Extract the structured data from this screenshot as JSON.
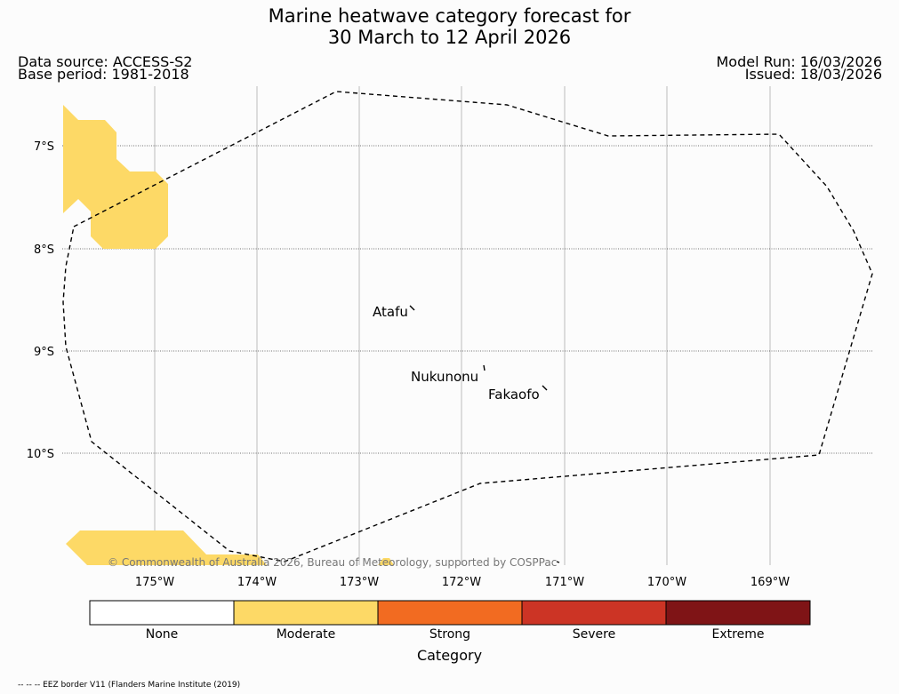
{
  "header": {
    "title_line1": "Marine heatwave category forecast for",
    "title_line2": "30 March to 12 April 2026",
    "data_source": "Data source: ACCESS-S2",
    "base_period": "Base period: 1981-2018",
    "model_run": "Model Run: 16/03/2026",
    "issued": "Issued: 18/03/2026"
  },
  "map": {
    "lat_labels": [
      "7°S",
      "8°S",
      "9°S",
      "10°S"
    ],
    "lon_labels": [
      "175°W",
      "174°W",
      "173°W",
      "172°W",
      "171°W",
      "170°W",
      "169°W"
    ],
    "places": [
      "Atafu",
      "Nukunonu",
      "Fakaofo"
    ],
    "copyright": "© Commonwealth of Australia 2026, Bureau of Meteorology, supported by COSPPac",
    "colors": {
      "moderate_fill": "#fdd966",
      "eez_line": "#000000",
      "grid": "#aaaaaa"
    }
  },
  "legend": {
    "categories": [
      {
        "label": "None",
        "color": "#ffffff"
      },
      {
        "label": "Moderate",
        "color": "#fdd966"
      },
      {
        "label": "Strong",
        "color": "#f26b21"
      },
      {
        "label": "Severe",
        "color": "#cc3425"
      },
      {
        "label": "Extreme",
        "color": "#7f1416"
      }
    ],
    "title": "Category"
  },
  "footnote": "-- -- -- EEZ border V11 (Flanders Marine Institute (2019)"
}
